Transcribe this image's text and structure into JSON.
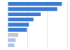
{
  "chart_data": {
    "type": "bar",
    "orientation": "horizontal",
    "categories": [
      null,
      null,
      null,
      null,
      null,
      null,
      null,
      null,
      null
    ],
    "values": [
      82,
      75,
      50,
      39,
      32,
      29,
      16,
      12,
      10
    ],
    "colors": [
      "#3a7bd5",
      "#3a7bd5",
      "#3a7bd5",
      "#3a7bd5",
      "#3a7bd5",
      "#3a7bd5",
      "#c8c8c8",
      "#a9c4ea",
      "#a9c4ea"
    ],
    "xlim": [
      0,
      90
    ],
    "xticks": [
      0,
      30,
      60,
      90
    ],
    "grid": true,
    "tick_labels": false
  }
}
